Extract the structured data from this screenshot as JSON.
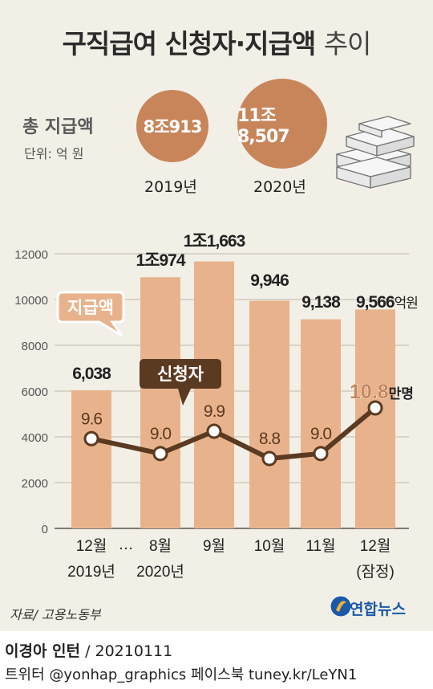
{
  "title_bold": "구직급여 신청자·지급액",
  "title_light": "추이",
  "total_label": "총 지급액",
  "unit_label": "단위: 억 원",
  "bubbles": [
    {
      "value": "8조913",
      "year": "2019년"
    },
    {
      "value": "11조8,507",
      "year": "2020년"
    }
  ],
  "colors": {
    "bar": "#e8b38c",
    "bubble": "#c8855a",
    "line": "#5b3a22",
    "panel": "#f2efe6",
    "highlight": "#c8855a"
  },
  "icons": [
    "money-stack-icon",
    "yonhap-logo-icon"
  ],
  "chart_data": {
    "type": "bar",
    "categories": [
      "12월 2019년",
      "8월 2020년",
      "9월",
      "10월",
      "11월",
      "12월 (잠정)"
    ],
    "x_tick_labels": [
      [
        "12월",
        "2019년"
      ],
      [
        "8월",
        "2020년"
      ],
      [
        "9월",
        ""
      ],
      [
        "10월",
        ""
      ],
      [
        "11월",
        ""
      ],
      [
        "12월",
        "(잠정)"
      ]
    ],
    "ellipsis": "…",
    "ylim": [
      0,
      12000
    ],
    "yticks": [
      0,
      2000,
      4000,
      6000,
      8000,
      10000,
      12000
    ],
    "grid": true,
    "series": [
      {
        "name": "지급액",
        "type": "bar",
        "values": [
          6038,
          10974,
          11663,
          9946,
          9138,
          9566
        ],
        "labels": [
          "6,038",
          "1조974",
          "1조1,663",
          "9,946",
          "9,138",
          "9,566"
        ],
        "unit": "억원"
      },
      {
        "name": "신청자",
        "type": "line",
        "values": [
          9.6,
          9.0,
          9.9,
          8.8,
          9.0,
          10.8
        ],
        "labels": [
          "9.6",
          "9.0",
          "9.9",
          "8.8",
          "9.0",
          "10.8"
        ],
        "unit": "만명"
      }
    ]
  },
  "source": "자료/ 고용노동부",
  "logo_text": "연합뉴스",
  "credit_name": "이경아 인턴",
  "credit_date": "/ 20210111",
  "social": "트위터 @yonhap_graphics  페이스북 tuney.kr/LeYN1"
}
